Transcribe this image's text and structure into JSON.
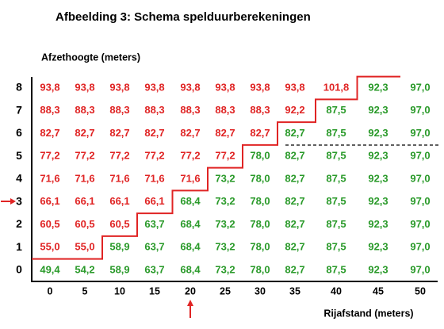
{
  "title": "Afbeelding 3: Schema spelduurberekeningen",
  "y_label": "Afzethoogte (meters)",
  "x_label": "Rijafstand (meters)",
  "palette": {
    "red": "#e02424",
    "green": "#2a9a2a"
  },
  "columns": [
    "0",
    "5",
    "10",
    "15",
    "20",
    "25",
    "30",
    "35",
    "40",
    "45",
    "50"
  ],
  "rows": [
    {
      "label": "8",
      "cells": [
        "93,8",
        "93,8",
        "93,8",
        "93,8",
        "93,8",
        "93,8",
        "93,8",
        "93,8",
        "101,8",
        "92,3",
        "97,0"
      ],
      "colors": [
        "red",
        "red",
        "red",
        "red",
        "red",
        "red",
        "red",
        "red",
        "red",
        "green",
        "green"
      ]
    },
    {
      "label": "7",
      "cells": [
        "88,3",
        "88,3",
        "88,3",
        "88,3",
        "88,3",
        "88,3",
        "88,3",
        "92,2",
        "87,5",
        "92,3",
        "97,0"
      ],
      "colors": [
        "red",
        "red",
        "red",
        "red",
        "red",
        "red",
        "red",
        "red",
        "green",
        "green",
        "green"
      ]
    },
    {
      "label": "6",
      "cells": [
        "82,7",
        "82,7",
        "82,7",
        "82,7",
        "82,7",
        "82,7",
        "82,7",
        "82,7",
        "87,5",
        "92,3",
        "97,0"
      ],
      "colors": [
        "red",
        "red",
        "red",
        "red",
        "red",
        "red",
        "red",
        "green",
        "green",
        "green",
        "green"
      ]
    },
    {
      "label": "5",
      "cells": [
        "77,2",
        "77,2",
        "77,2",
        "77,2",
        "77,2",
        "77,2",
        "78,0",
        "82,7",
        "87,5",
        "92,3",
        "97,0"
      ],
      "colors": [
        "red",
        "red",
        "red",
        "red",
        "red",
        "red",
        "green",
        "green",
        "green",
        "green",
        "green"
      ]
    },
    {
      "label": "4",
      "cells": [
        "71,6",
        "71,6",
        "71,6",
        "71,6",
        "71,6",
        "73,2",
        "78,0",
        "82,7",
        "87,5",
        "92,3",
        "97,0"
      ],
      "colors": [
        "red",
        "red",
        "red",
        "red",
        "red",
        "green",
        "green",
        "green",
        "green",
        "green",
        "green"
      ]
    },
    {
      "label": "3",
      "cells": [
        "66,1",
        "66,1",
        "66,1",
        "66,1",
        "68,4",
        "73,2",
        "78,0",
        "82,7",
        "87,5",
        "92,3",
        "97,0"
      ],
      "colors": [
        "red",
        "red",
        "red",
        "red",
        "green",
        "green",
        "green",
        "green",
        "green",
        "green",
        "green"
      ]
    },
    {
      "label": "2",
      "cells": [
        "60,5",
        "60,5",
        "60,5",
        "63,7",
        "68,4",
        "73,2",
        "78,0",
        "82,7",
        "87,5",
        "92,3",
        "97,0"
      ],
      "colors": [
        "red",
        "red",
        "red",
        "green",
        "green",
        "green",
        "green",
        "green",
        "green",
        "green",
        "green"
      ]
    },
    {
      "label": "1",
      "cells": [
        "55,0",
        "55,0",
        "58,9",
        "63,7",
        "68,4",
        "73,2",
        "78,0",
        "82,7",
        "87,5",
        "92,3",
        "97,0"
      ],
      "colors": [
        "red",
        "red",
        "green",
        "green",
        "green",
        "green",
        "green",
        "green",
        "green",
        "green",
        "green"
      ]
    },
    {
      "label": "0",
      "cells": [
        "49,4",
        "54,2",
        "58,9",
        "63,7",
        "68,4",
        "73,2",
        "78,0",
        "82,7",
        "87,5",
        "92,3",
        "97,0"
      ],
      "colors": [
        "green",
        "green",
        "green",
        "green",
        "green",
        "green",
        "green",
        "green",
        "green",
        "green",
        "green"
      ]
    }
  ]
}
